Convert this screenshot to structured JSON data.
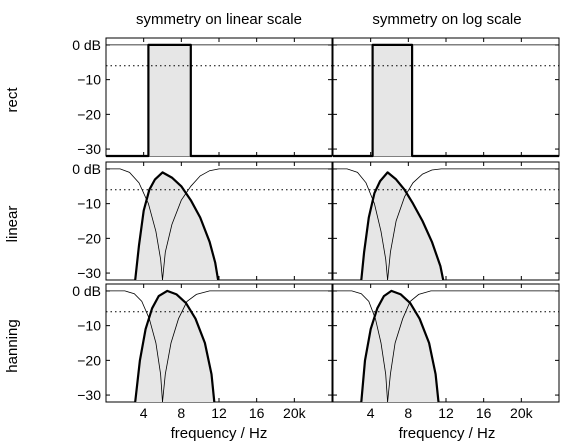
{
  "chart_data": {
    "type": "line",
    "rows": [
      "rect",
      "linear",
      "hanning"
    ],
    "columns": [
      {
        "title": "symmetry on linear scale",
        "xlabel": "frequency / Hz"
      },
      {
        "title": "symmetry on log scale",
        "xlabel": "frequency / Hz"
      }
    ],
    "xlim": [
      0,
      24
    ],
    "ylim": [
      -32,
      2
    ],
    "x_ticks": [
      {
        "value": 4,
        "label": "4"
      },
      {
        "value": 8,
        "label": "8"
      },
      {
        "value": 12,
        "label": "12"
      },
      {
        "value": 16,
        "label": "16"
      },
      {
        "value": 20,
        "label": "20k"
      }
    ],
    "y_ticks": [
      {
        "value": 0,
        "label": "0 dB"
      },
      {
        "value": -10,
        "label": "−10"
      },
      {
        "value": -20,
        "label": "−20"
      },
      {
        "value": -30,
        "label": "−30"
      }
    ],
    "reference_line_db": -6,
    "panels": [
      {
        "row": "rect",
        "col": 0,
        "filled": [
          [
            0,
            -32
          ],
          [
            4.5,
            -32
          ],
          [
            4.5,
            0
          ],
          [
            9.0,
            0
          ],
          [
            9.0,
            -32
          ],
          [
            24,
            -32
          ]
        ],
        "thin": [
          [
            0,
            0
          ],
          [
            24,
            0
          ]
        ]
      },
      {
        "row": "rect",
        "col": 1,
        "filled": [
          [
            0,
            -32
          ],
          [
            4.2,
            -32
          ],
          [
            4.2,
            0
          ],
          [
            8.4,
            0
          ],
          [
            8.4,
            -32
          ],
          [
            24,
            -32
          ]
        ],
        "thin": [
          [
            0,
            0
          ],
          [
            24,
            0
          ]
        ]
      },
      {
        "row": "linear",
        "col": 0,
        "filled": [
          [
            3.1,
            -32
          ],
          [
            3.5,
            -22
          ],
          [
            4.0,
            -12
          ],
          [
            4.6,
            -6
          ],
          [
            5.2,
            -3
          ],
          [
            6.0,
            -1
          ],
          [
            7.0,
            -2.5
          ],
          [
            8.0,
            -5
          ],
          [
            9.0,
            -9
          ],
          [
            10.0,
            -14
          ],
          [
            11.0,
            -21
          ],
          [
            11.6,
            -27
          ],
          [
            11.9,
            -32
          ]
        ],
        "thin": [
          [
            [
              0,
              0
            ],
            [
              1.5,
              0
            ],
            [
              2.5,
              -1
            ],
            [
              3.5,
              -4
            ],
            [
              4.5,
              -10
            ],
            [
              5.3,
              -18
            ],
            [
              5.8,
              -26
            ],
            [
              6.0,
              -32
            ]
          ],
          [
            [
              6.0,
              -32
            ],
            [
              6.3,
              -24
            ],
            [
              7.0,
              -16
            ],
            [
              8.0,
              -9
            ],
            [
              9.0,
              -5
            ],
            [
              10.0,
              -2
            ],
            [
              11.0,
              -0.5
            ],
            [
              12.0,
              0
            ],
            [
              24,
              0
            ]
          ]
        ]
      },
      {
        "row": "linear",
        "col": 1,
        "filled": [
          [
            3.0,
            -32
          ],
          [
            3.3,
            -24
          ],
          [
            3.8,
            -14
          ],
          [
            4.4,
            -7
          ],
          [
            5.0,
            -3.5
          ],
          [
            5.8,
            -1
          ],
          [
            6.7,
            -3
          ],
          [
            7.6,
            -6
          ],
          [
            8.5,
            -10
          ],
          [
            9.5,
            -15
          ],
          [
            10.5,
            -21
          ],
          [
            11.4,
            -28
          ],
          [
            11.7,
            -32
          ]
        ],
        "thin": [
          [
            [
              0,
              0
            ],
            [
              1.5,
              0
            ],
            [
              2.6,
              -1
            ],
            [
              3.5,
              -4
            ],
            [
              4.4,
              -10
            ],
            [
              5.1,
              -18
            ],
            [
              5.6,
              -26
            ],
            [
              5.8,
              -32
            ]
          ],
          [
            [
              5.8,
              -32
            ],
            [
              6.1,
              -24
            ],
            [
              6.7,
              -15
            ],
            [
              7.6,
              -8
            ],
            [
              8.5,
              -4
            ],
            [
              9.5,
              -1.5
            ],
            [
              10.5,
              -0.3
            ],
            [
              11.5,
              0
            ],
            [
              24,
              0
            ]
          ]
        ]
      },
      {
        "row": "hanning",
        "col": 0,
        "filled": [
          [
            3.1,
            -32
          ],
          [
            3.6,
            -20
          ],
          [
            4.2,
            -11
          ],
          [
            4.9,
            -5
          ],
          [
            5.6,
            -1.5
          ],
          [
            6.5,
            0
          ],
          [
            7.5,
            -1
          ],
          [
            8.5,
            -3.5
          ],
          [
            9.5,
            -8
          ],
          [
            10.5,
            -15
          ],
          [
            11.2,
            -24
          ],
          [
            11.5,
            -32
          ]
        ],
        "thin": [
          [
            [
              0,
              0
            ],
            [
              2.0,
              0
            ],
            [
              3.0,
              -0.8
            ],
            [
              3.8,
              -3
            ],
            [
              4.6,
              -8
            ],
            [
              5.3,
              -15
            ],
            [
              5.8,
              -24
            ],
            [
              6.0,
              -32
            ]
          ],
          [
            [
              6.0,
              -32
            ],
            [
              6.3,
              -24
            ],
            [
              6.9,
              -15
            ],
            [
              7.7,
              -8
            ],
            [
              8.6,
              -3
            ],
            [
              9.6,
              -1
            ],
            [
              11.0,
              0
            ],
            [
              24,
              0
            ]
          ]
        ]
      },
      {
        "row": "hanning",
        "col": 1,
        "filled": [
          [
            3.0,
            -32
          ],
          [
            3.4,
            -20
          ],
          [
            4.0,
            -11
          ],
          [
            4.7,
            -5
          ],
          [
            5.4,
            -1.5
          ],
          [
            6.2,
            0
          ],
          [
            7.2,
            -1
          ],
          [
            8.2,
            -3.5
          ],
          [
            9.2,
            -8
          ],
          [
            10.2,
            -15
          ],
          [
            10.9,
            -24
          ],
          [
            11.2,
            -32
          ]
        ],
        "thin": [
          [
            [
              0,
              0
            ],
            [
              2.0,
              0
            ],
            [
              3.0,
              -0.8
            ],
            [
              3.8,
              -3
            ],
            [
              4.5,
              -8
            ],
            [
              5.1,
              -15
            ],
            [
              5.6,
              -24
            ],
            [
              5.8,
              -32
            ]
          ],
          [
            [
              5.8,
              -32
            ],
            [
              6.1,
              -24
            ],
            [
              6.6,
              -15
            ],
            [
              7.4,
              -8
            ],
            [
              8.2,
              -3
            ],
            [
              9.1,
              -1
            ],
            [
              10.4,
              0
            ],
            [
              24,
              0
            ]
          ]
        ]
      }
    ]
  }
}
